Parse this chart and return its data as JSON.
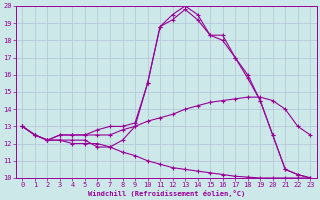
{
  "xlabel": "Windchill (Refroidissement éolien,°C)",
  "xlim": [
    -0.5,
    23.5
  ],
  "ylim": [
    10,
    20
  ],
  "xticks": [
    0,
    1,
    2,
    3,
    4,
    5,
    6,
    7,
    8,
    9,
    10,
    11,
    12,
    13,
    14,
    15,
    16,
    17,
    18,
    19,
    20,
    21,
    22,
    23
  ],
  "yticks": [
    10,
    11,
    12,
    13,
    14,
    15,
    16,
    17,
    18,
    19,
    20
  ],
  "bg_color": "#cce8e8",
  "line_color": "#990099",
  "grid_color": "#aabbcc",
  "lines": [
    {
      "x": [
        0,
        1,
        2,
        3,
        4,
        5,
        6,
        7,
        8,
        9,
        10,
        11,
        12,
        13,
        14,
        15,
        16,
        17,
        18,
        19,
        20,
        21,
        22,
        23
      ],
      "y": [
        13,
        12.5,
        12.2,
        12.2,
        12.2,
        12.2,
        11.8,
        11.8,
        12.2,
        13.0,
        15.5,
        18.8,
        19.5,
        20,
        19.5,
        18.3,
        18.3,
        17.0,
        16.0,
        14.5,
        12.5,
        10.5,
        10.2,
        10.0
      ]
    },
    {
      "x": [
        0,
        1,
        2,
        3,
        4,
        5,
        6,
        7,
        8,
        9,
        10,
        11,
        12,
        13,
        14,
        15,
        16,
        17,
        18,
        19,
        20,
        21,
        22,
        23
      ],
      "y": [
        13,
        12.5,
        12.2,
        12.5,
        12.5,
        12.5,
        12.8,
        13.0,
        13.0,
        13.2,
        15.5,
        18.8,
        19.2,
        19.8,
        19.2,
        18.3,
        18.0,
        17.0,
        15.8,
        14.5,
        12.5,
        10.5,
        10.2,
        10.0
      ]
    },
    {
      "x": [
        0,
        1,
        2,
        3,
        4,
        5,
        6,
        7,
        8,
        9,
        10,
        11,
        12,
        13,
        14,
        15,
        16,
        17,
        18,
        19,
        20,
        21,
        22,
        23
      ],
      "y": [
        13,
        12.5,
        12.2,
        12.5,
        12.5,
        12.5,
        12.5,
        12.5,
        12.8,
        13.0,
        13.3,
        13.5,
        13.7,
        14.0,
        14.2,
        14.4,
        14.5,
        14.6,
        14.7,
        14.7,
        14.5,
        14.0,
        13.0,
        12.5
      ]
    },
    {
      "x": [
        0,
        1,
        2,
        3,
        4,
        5,
        6,
        7,
        8,
        9,
        10,
        11,
        12,
        13,
        14,
        15,
        16,
        17,
        18,
        19,
        20,
        21,
        22,
        23
      ],
      "y": [
        13,
        12.5,
        12.2,
        12.2,
        12.0,
        12.0,
        12.0,
        11.8,
        11.5,
        11.3,
        11.0,
        10.8,
        10.6,
        10.5,
        10.4,
        10.3,
        10.2,
        10.1,
        10.05,
        10.0,
        10.0,
        10.0,
        10.0,
        10.0
      ]
    }
  ]
}
